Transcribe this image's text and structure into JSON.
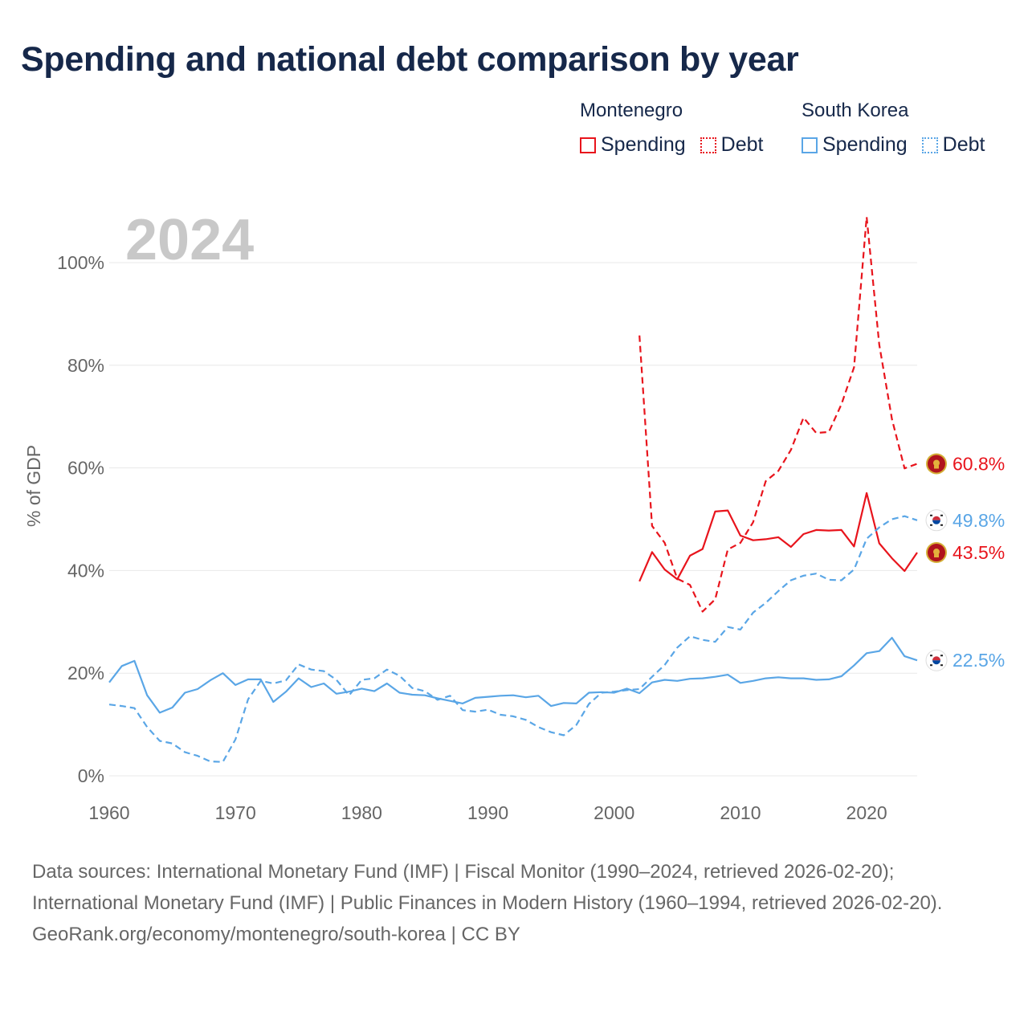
{
  "title": "Spending and national debt comparison by year",
  "legend": {
    "groups": [
      {
        "name": "Montenegro",
        "color": "#e8141c",
        "items": [
          "Spending",
          "Debt"
        ]
      },
      {
        "name": "South Korea",
        "color": "#5aa6e6",
        "items": [
          "Spending",
          "Debt"
        ]
      }
    ]
  },
  "footer": {
    "sources": "Data sources: International Monetary Fund (IMF) | Fiscal Monitor (1990–2024, retrieved 2026-02-20); International Monetary Fund (IMF) | Public Finances in Modern History (1960–1994, retrieved 2026-02-20).",
    "credit": "GeoRank.org/economy/montenegro/south-korea | CC BY"
  },
  "chart_data": {
    "type": "line",
    "watermark_year": "2024",
    "ylabel": "% of GDP",
    "xlim": [
      1960,
      2024
    ],
    "ylim": [
      0,
      100
    ],
    "x_ticks": [
      1960,
      1970,
      1980,
      1990,
      2000,
      2010,
      2020
    ],
    "x_tick_labels": [
      "1960",
      "1970",
      "1980",
      "1990",
      "2000",
      "2010",
      "2020"
    ],
    "y_ticks": [
      0,
      20,
      40,
      60,
      80,
      100
    ],
    "y_tick_labels": [
      "0%",
      "20%",
      "40%",
      "60%",
      "80%",
      "100%"
    ],
    "series": [
      {
        "name": "Montenegro Spending",
        "country": "Montenegro",
        "color": "#e8141c",
        "dash": false,
        "end_label": "43.5%",
        "flag": "montenegro",
        "x": [
          2002,
          2003,
          2004,
          2005,
          2006,
          2007,
          2008,
          2009,
          2010,
          2011,
          2012,
          2013,
          2014,
          2015,
          2016,
          2017,
          2018,
          2019,
          2020,
          2021,
          2022,
          2023,
          2024
        ],
        "values": [
          37.9,
          43.6,
          40.2,
          38.3,
          42.9,
          44.2,
          51.5,
          51.7,
          46.8,
          45.9,
          46.1,
          46.5,
          44.6,
          47.1,
          47.9,
          47.8,
          47.9,
          44.7,
          55.1,
          45.3,
          42.4,
          39.9,
          43.5
        ]
      },
      {
        "name": "Montenegro Debt",
        "country": "Montenegro",
        "color": "#e8141c",
        "dash": true,
        "end_label": "60.8%",
        "flag": "montenegro",
        "x": [
          2002,
          2003,
          2004,
          2005,
          2006,
          2007,
          2008,
          2009,
          2010,
          2011,
          2012,
          2013,
          2014,
          2015,
          2016,
          2017,
          2018,
          2019,
          2020,
          2021,
          2022,
          2023,
          2024
        ],
        "values": [
          85.8,
          48.7,
          45.4,
          38.4,
          37.2,
          32.0,
          34.4,
          44.1,
          45.4,
          49.4,
          57.4,
          59.4,
          63.5,
          69.8,
          66.8,
          67.0,
          72.4,
          79.6,
          108.9,
          84.0,
          69.5,
          59.9,
          60.8
        ]
      },
      {
        "name": "South Korea Spending",
        "country": "South Korea",
        "color": "#5aa6e6",
        "dash": false,
        "end_label": "22.5%",
        "flag": "south-korea",
        "x": [
          1960,
          1961,
          1962,
          1963,
          1964,
          1965,
          1966,
          1967,
          1968,
          1969,
          1970,
          1971,
          1972,
          1973,
          1974,
          1975,
          1976,
          1977,
          1978,
          1979,
          1980,
          1981,
          1982,
          1983,
          1984,
          1985,
          1986,
          1987,
          1988,
          1989,
          1990,
          1991,
          1992,
          1993,
          1994,
          1995,
          1996,
          1997,
          1998,
          1999,
          2000,
          2001,
          2002,
          2003,
          2004,
          2005,
          2006,
          2007,
          2008,
          2009,
          2010,
          2011,
          2012,
          2013,
          2014,
          2015,
          2016,
          2017,
          2018,
          2019,
          2020,
          2021,
          2022,
          2023,
          2024
        ],
        "values": [
          18.2,
          21.4,
          22.4,
          15.7,
          12.3,
          13.3,
          16.2,
          16.9,
          18.6,
          20.0,
          17.7,
          18.8,
          18.8,
          14.4,
          16.4,
          19.0,
          17.3,
          18.0,
          16.0,
          16.4,
          17.0,
          16.5,
          18.0,
          16.2,
          15.8,
          15.7,
          15.1,
          14.6,
          14.1,
          15.2,
          15.4,
          15.6,
          15.7,
          15.3,
          15.6,
          13.6,
          14.2,
          14.1,
          16.2,
          16.3,
          16.2,
          17.0,
          16.1,
          18.2,
          18.7,
          18.5,
          18.9,
          19.0,
          19.3,
          19.7,
          18.1,
          18.5,
          19.0,
          19.2,
          19.0,
          19.0,
          18.7,
          18.8,
          19.4,
          21.5,
          23.9,
          24.3,
          26.9,
          23.3,
          22.5
        ]
      },
      {
        "name": "South Korea Debt",
        "country": "South Korea",
        "color": "#5aa6e6",
        "dash": true,
        "end_label": "49.8%",
        "flag": "south-korea",
        "x": [
          1960,
          1961,
          1962,
          1963,
          1964,
          1965,
          1966,
          1967,
          1968,
          1969,
          1970,
          1971,
          1972,
          1973,
          1974,
          1975,
          1976,
          1977,
          1978,
          1979,
          1980,
          1981,
          1982,
          1983,
          1984,
          1985,
          1986,
          1987,
          1988,
          1989,
          1990,
          1991,
          1992,
          1993,
          1994,
          1995,
          1996,
          1997,
          1998,
          1999,
          2000,
          2001,
          2002,
          2003,
          2004,
          2005,
          2006,
          2007,
          2008,
          2009,
          2010,
          2011,
          2012,
          2013,
          2014,
          2015,
          2016,
          2017,
          2018,
          2019,
          2020,
          2021,
          2022,
          2023,
          2024
        ],
        "values": [
          13.9,
          13.6,
          13.2,
          9.5,
          6.8,
          6.3,
          4.6,
          3.9,
          2.8,
          2.7,
          7.1,
          14.9,
          18.5,
          18.0,
          18.6,
          21.7,
          20.7,
          20.4,
          18.7,
          15.7,
          18.7,
          19.0,
          20.7,
          19.5,
          17.1,
          16.5,
          14.8,
          15.6,
          12.8,
          12.5,
          12.9,
          11.9,
          11.6,
          10.9,
          9.5,
          8.5,
          7.9,
          9.9,
          14.0,
          16.2,
          16.4,
          16.7,
          16.9,
          19.3,
          21.6,
          25.0,
          27.2,
          26.5,
          26.1,
          29.0,
          28.5,
          31.8,
          33.7,
          36.0,
          38.1,
          39.0,
          39.4,
          38.2,
          38.1,
          40.2,
          46.2,
          48.4,
          50.0,
          50.6,
          49.8
        ]
      }
    ]
  }
}
